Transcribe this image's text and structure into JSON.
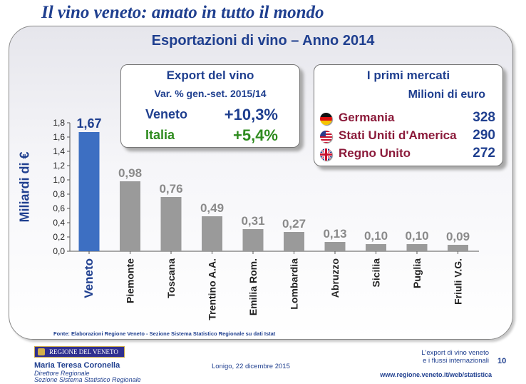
{
  "header": {
    "title": "Il vino veneto: amato in tutto il mondo"
  },
  "box_export": {
    "title": "Export del vino",
    "subtitle": "Var. % gen.-set. 2015/14",
    "rows": [
      {
        "label": "Veneto",
        "value": "+10,3%",
        "color": "#1f3f8f"
      },
      {
        "label": "Italia",
        "value": "+5,4%",
        "color": "#2e8b1e"
      }
    ]
  },
  "box_markets": {
    "title": "I primi mercati",
    "subtitle": "Milioni di euro",
    "rows": [
      {
        "flag": "germany-flag-icon",
        "label": "Germania",
        "value": "328"
      },
      {
        "flag": "usa-flag-icon",
        "label": "Stati Uniti d'America",
        "value": "290"
      },
      {
        "flag": "uk-flag-icon",
        "label": "Regno Unito",
        "value": "272"
      }
    ],
    "label_color": "#8b1a3a",
    "value_color": "#1f3f8f"
  },
  "chart_data": {
    "type": "bar",
    "title": "Esportazioni di vino – Anno 2014",
    "ylabel": "Miliardi di €",
    "xlabel": "",
    "categories": [
      "Veneto",
      "Piemonte",
      "Toscana",
      "Trentino A.A.",
      "Emilia Rom.",
      "Lombardia",
      "Abruzzo",
      "Sicilia",
      "Puglia",
      "Friuli V.G."
    ],
    "values": [
      1.67,
      0.98,
      0.76,
      0.49,
      0.31,
      0.27,
      0.13,
      0.1,
      0.1,
      0.09
    ],
    "value_labels": [
      "1,67",
      "0,98",
      "0,76",
      "0,49",
      "0,31",
      "0,27",
      "0,13",
      "0,10",
      "0,10",
      "0,09"
    ],
    "ylim": [
      0,
      1.8
    ],
    "yticks": [
      "0,0",
      "0,2",
      "0,4",
      "0,6",
      "0,8",
      "1,0",
      "1,2",
      "1,4",
      "1,6",
      "1,8"
    ],
    "grid": false,
    "highlight_color": "#3d6fc2",
    "bar_color": "#9a9a9a",
    "highlight_label_color": "#1f3f8f",
    "label_color": "#8a8a8a"
  },
  "source": "Fonte: Elaborazioni Regione Veneto - Sezione Sistema Statistico Regionale su dati Istat",
  "footer": {
    "logo_text": "REGIONE DEL VENETO",
    "author": "Maria Teresa Coronella",
    "role_1": "Direttore Regionale",
    "role_2": "Sezione Sistema Statistico Regionale",
    "event": "Lonigo, 22 dicembre 2015",
    "topic_1": "L'export di vino veneto",
    "topic_2": "e i flussi internazionali",
    "url": "www.regione.veneto.it/web/statistica",
    "page": "10"
  }
}
